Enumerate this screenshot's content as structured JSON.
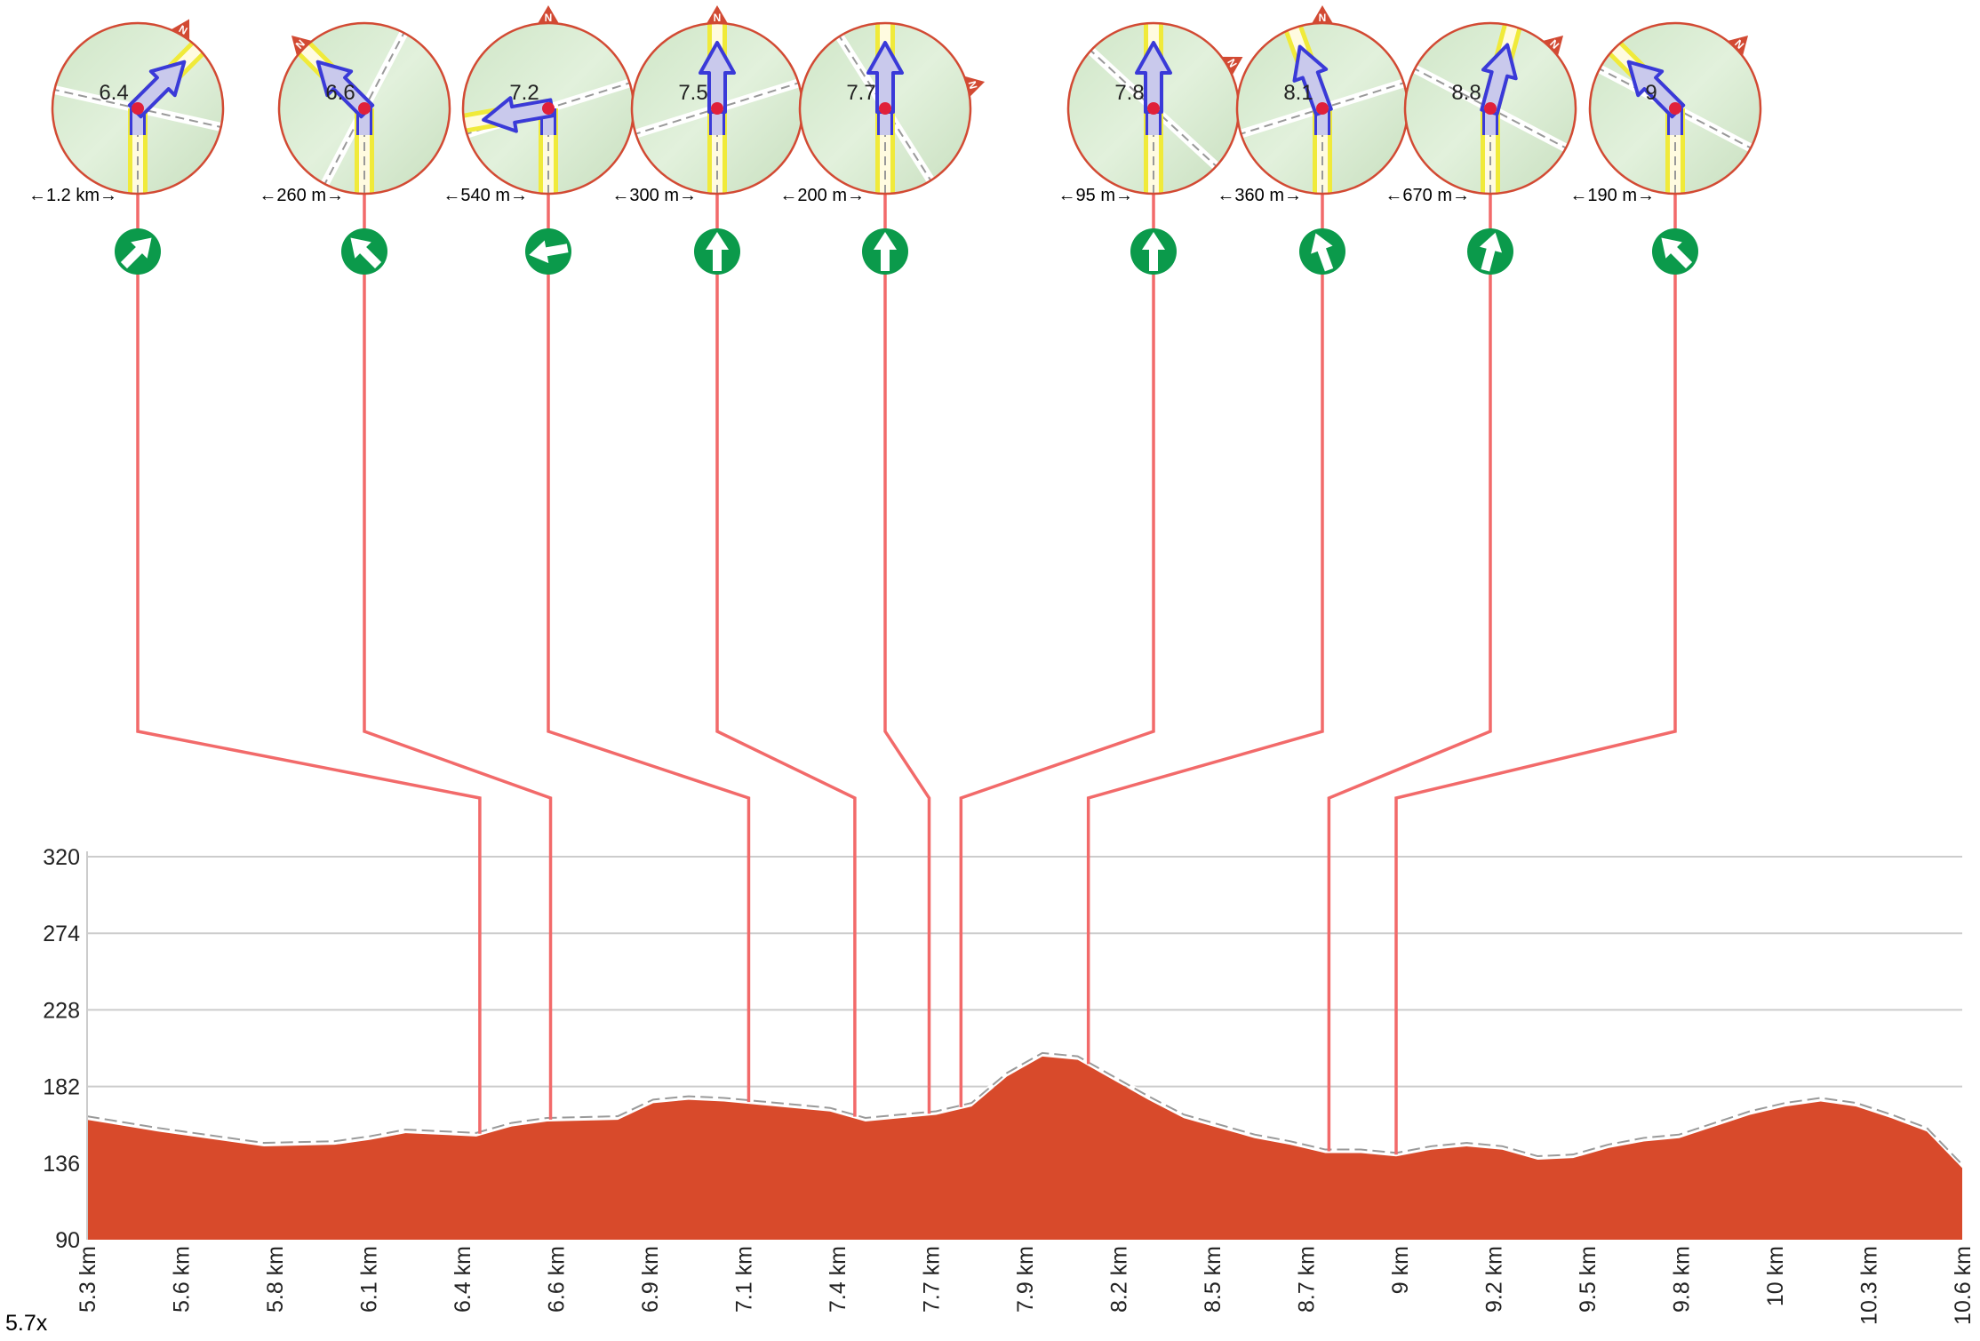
{
  "zoom_label": "5.7x",
  "colors": {
    "terrain": "#d84a2b",
    "connector": "#f26a6a",
    "turn_badge": "#0b9a4b",
    "map_bg": "#d8ecd2",
    "map_border": "#d24a33",
    "road_yellow": "#f0ea3a",
    "route_arrow": "#3a3ad8",
    "marker": "#e0203a",
    "grid": "#cccccc"
  },
  "chart_data": {
    "type": "area",
    "title": "",
    "xlabel": "",
    "ylabel": "",
    "x_range": [
      5.3,
      10.6
    ],
    "ylim": [
      90,
      320
    ],
    "y_ticks": [
      "320",
      "274",
      "228",
      "182",
      "136",
      "90"
    ],
    "x_tick_labels": [
      "5.3 km",
      "5.6 km",
      "5.8 km",
      "6.1 km",
      "6.4 km",
      "6.6 km",
      "6.9 km",
      "7.1 km",
      "7.4 km",
      "7.7 km",
      "7.9 km",
      "8.2 km",
      "8.5 km",
      "8.7 km",
      "9 km",
      "9.2 km",
      "9.5 km",
      "9.8 km",
      "10 km",
      "10.3 km",
      "10.6 km"
    ],
    "grid": true,
    "series": [
      {
        "x": [
          5.3,
          5.5,
          5.8,
          6.0,
          6.1,
          6.2,
          6.4,
          6.5,
          6.6,
          6.8,
          6.9,
          7.0,
          7.1,
          7.2,
          7.4,
          7.5,
          7.7,
          7.8,
          7.9,
          8.0,
          8.1,
          8.2,
          8.3,
          8.4,
          8.5,
          8.6,
          8.7,
          8.8,
          8.9,
          9.0,
          9.1,
          9.2,
          9.3,
          9.4,
          9.5,
          9.6,
          9.7,
          9.8,
          9.9,
          10.0,
          10.1,
          10.2,
          10.3,
          10.4,
          10.5,
          10.6
        ],
        "y": [
          162,
          155,
          146,
          147,
          150,
          154,
          152,
          158,
          161,
          162,
          172,
          174,
          173,
          171,
          167,
          161,
          165,
          170,
          188,
          200,
          198,
          186,
          174,
          163,
          157,
          151,
          147,
          142,
          142,
          140,
          144,
          146,
          144,
          138,
          139,
          145,
          149,
          151,
          158,
          165,
          170,
          173,
          170,
          163,
          155,
          133
        ]
      }
    ]
  },
  "turns": [
    {
      "km": "6.4",
      "distance": "←1.2 km→",
      "heading": 45,
      "map_rotation": 30,
      "route_km": 6.41
    },
    {
      "km": "6.6",
      "distance": "←260 m→",
      "heading": -45,
      "map_rotation": -45,
      "route_km": 6.61
    },
    {
      "km": "7.2",
      "distance": "←540 m→",
      "heading": -100,
      "map_rotation": 0,
      "route_km": 7.17
    },
    {
      "km": "7.5",
      "distance": "←300 m→",
      "heading": 0,
      "map_rotation": 0,
      "route_km": 7.47
    },
    {
      "km": "7.7",
      "distance": "←200 m→",
      "heading": 0,
      "map_rotation": 75,
      "route_km": 7.68
    },
    {
      "km": "7.8",
      "distance": "←95 m→",
      "heading": 0,
      "map_rotation": 60,
      "route_km": 7.77
    },
    {
      "km": "8.1",
      "distance": "←360 m→",
      "heading": -20,
      "map_rotation": 0,
      "route_km": 8.13
    },
    {
      "km": "8.8",
      "distance": "←670 m→",
      "heading": 15,
      "map_rotation": 45,
      "route_km": 8.81
    },
    {
      "km": "9",
      "distance": "←190 m→",
      "heading": -45,
      "map_rotation": 45,
      "route_km": 9.0
    }
  ]
}
